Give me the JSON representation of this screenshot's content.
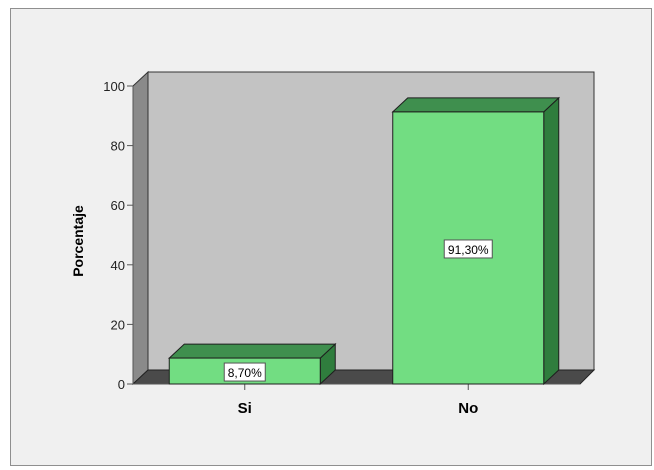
{
  "chart_data": {
    "type": "bar",
    "style": "3d",
    "categories": [
      "Si",
      "No"
    ],
    "values": [
      8.7,
      91.3
    ],
    "data_labels": [
      "8,70%",
      "91,30%"
    ],
    "title": "",
    "xlabel": "",
    "ylabel": "Porcentaje",
    "ylim": [
      0,
      100
    ],
    "yticks": [
      "0",
      "20",
      "40",
      "60",
      "80",
      "100"
    ],
    "grid": false,
    "legend": "none"
  },
  "colors": {
    "bar_front": "#72dd82",
    "bar_top": "#3f8f4e",
    "bar_side": "#2f7d3d",
    "plot_back_wall": "#c3c3c3",
    "plot_side_wall": "#8a8a8a",
    "plot_floor": "#4a4a4a",
    "frame_background": "#f0f0f0"
  }
}
